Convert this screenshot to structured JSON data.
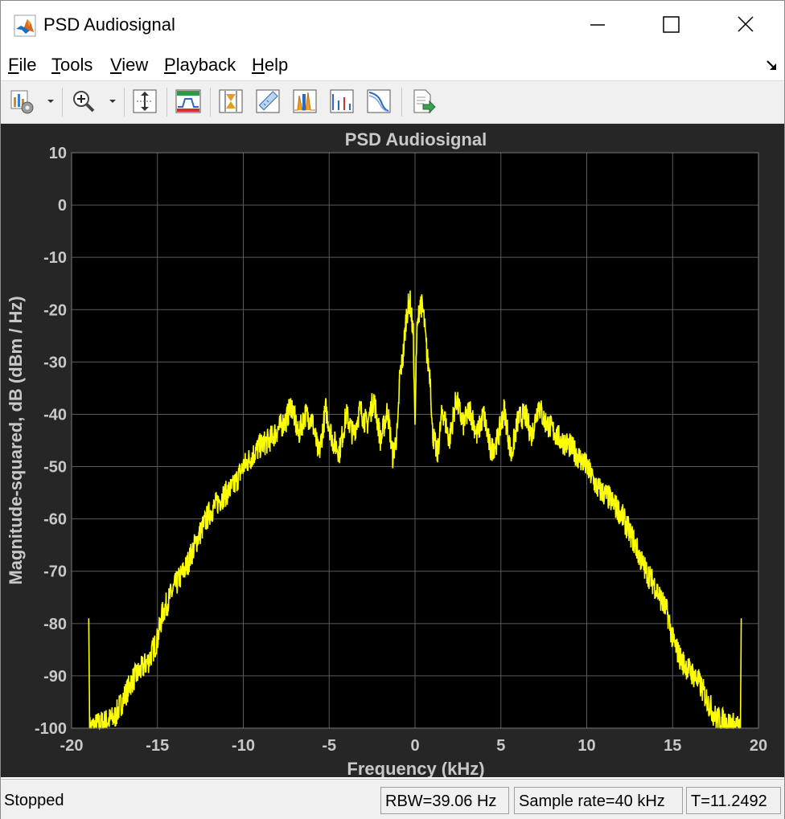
{
  "window": {
    "title": "PSD Audiosignal"
  },
  "menu": [
    {
      "label": "File",
      "accel": "F",
      "rest": "ile"
    },
    {
      "label": "Tools",
      "accel": "T",
      "rest": "ools"
    },
    {
      "label": "View",
      "accel": "V",
      "rest": "iew"
    },
    {
      "label": "Playback",
      "accel": "P",
      "rest": "layback"
    },
    {
      "label": "Help",
      "accel": "H",
      "rest": "elp"
    }
  ],
  "toolbar": {
    "icons": [
      "configuration-properties-icon",
      "zoom-in-icon",
      "scale-axes-icon",
      "spectral-mask-icon",
      "data-cursors-icon",
      "measurement-icon",
      "peak-finder-icon",
      "distortion-icon",
      "ccdf-icon",
      "generate-script-icon"
    ]
  },
  "status": {
    "state": "Stopped",
    "rbw": "RBW=39.06 Hz",
    "sample_rate": "Sample rate=40 kHz",
    "time": "T=11.2492"
  },
  "colors": {
    "trace": "#ffff00",
    "axes_bg": "#000000",
    "figure_bg": "#262626",
    "grid": "#5a5a5a",
    "label": "#c8c8c8"
  },
  "chart_data": {
    "type": "line",
    "title": "PSD Audiosignal",
    "xlabel": "Frequency (kHz)",
    "ylabel": "Magnitude-squared, dB (dBm / Hz)",
    "xlim": [
      -20,
      20
    ],
    "ylim": [
      -100,
      10
    ],
    "xticks": [
      -20,
      -15,
      -10,
      -5,
      0,
      5,
      10,
      15,
      20
    ],
    "yticks": [
      10,
      0,
      -10,
      -20,
      -30,
      -40,
      -50,
      -60,
      -70,
      -80,
      -90,
      -100
    ],
    "grid": true,
    "series": [
      {
        "x": [
          -19.0,
          -18.95,
          -17.5,
          -16.5,
          -15.5,
          -15.0,
          -14.7,
          -14.0,
          -13.3,
          -12.7,
          -12.0,
          -11.3,
          -10.6,
          -10.0,
          -9.5,
          -9.0,
          -8.5,
          -8.0,
          -7.5,
          -7.2,
          -6.8,
          -6.4,
          -6.0,
          -5.6,
          -5.2,
          -4.8,
          -4.4,
          -4.0,
          -3.6,
          -3.2,
          -2.8,
          -2.4,
          -2.0,
          -1.6,
          -1.3,
          -1.0,
          -0.9,
          -0.7,
          -0.5,
          -0.3,
          -0.1,
          0.0,
          0.1,
          0.3,
          0.5,
          0.7,
          0.9,
          1.0,
          1.3,
          1.6,
          2.0,
          2.4,
          2.8,
          3.2,
          3.6,
          4.0,
          4.4,
          4.8,
          5.2,
          5.6,
          6.0,
          6.4,
          6.8,
          7.2,
          7.5,
          8.0,
          8.5,
          9.0,
          9.5,
          10.0,
          10.6,
          11.3,
          12.0,
          12.7,
          13.3,
          14.0,
          14.7,
          15.0,
          15.5,
          16.5,
          17.5,
          18.95,
          19.0
        ],
        "y": [
          -79,
          -100,
          -98,
          -91,
          -87,
          -83,
          -78,
          -73,
          -69,
          -64,
          -59,
          -56,
          -54,
          -50,
          -48,
          -46,
          -45,
          -43,
          -41,
          -38,
          -44,
          -40,
          -41,
          -48,
          -39,
          -45,
          -47,
          -40,
          -44,
          -39,
          -42,
          -37,
          -45,
          -39,
          -48,
          -43,
          -33,
          -29,
          -21,
          -18,
          -25,
          -42,
          -25,
          -18,
          -21,
          -29,
          -33,
          -43,
          -48,
          -39,
          -45,
          -37,
          -42,
          -39,
          -44,
          -40,
          -47,
          -45,
          -39,
          -48,
          -41,
          -40,
          -44,
          -38,
          -41,
          -43,
          -45,
          -46,
          -48,
          -50,
          -54,
          -56,
          -59,
          -64,
          -69,
          -73,
          -78,
          -83,
          -87,
          -91,
          -98,
          -100,
          -79
        ]
      }
    ]
  }
}
